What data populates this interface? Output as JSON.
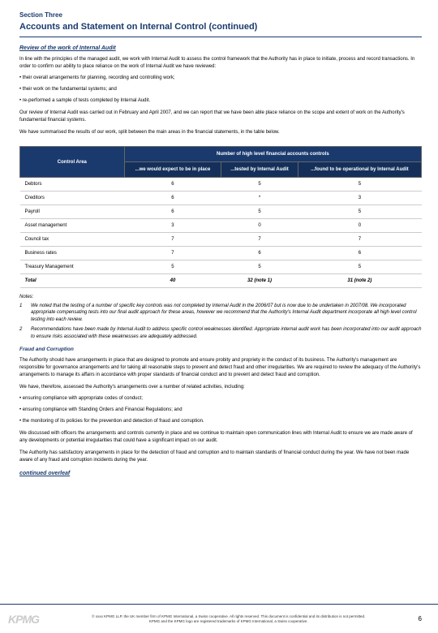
{
  "colors": {
    "navy": "#1a3a6e",
    "navy_dark": "#14305a"
  },
  "section_label": "Section Three",
  "main_title": "Accounts and Statement on Internal Control (continued)",
  "review_heading": "Review of the work of Internal Audit",
  "para1": "In line with the principles of the managed audit, we work with Internal Audit to assess the control framework that the Authority has in place to initiate, process and record transactions. In order to confirm our ability to place reliance on the work of Internal Audit we have reviewed:",
  "b1": "• their overall arrangements for planning, recording and controlling work;",
  "b2": "• their work on the fundamental systems; and",
  "b3": "• re-performed a sample of tests completed by Internal Audit.",
  "para2": "Our review of Internal Audit was carried out in February and April 2007, and we can report that we have been able place reliance on the scope and extent of work on the Authority's fundamental financial systems.",
  "para3": "We have summarised the results of our work, split between the main areas in the financial statements, in the table below.",
  "table": {
    "corner": "Control Area",
    "group_header": "Number of high level financial accounts controls",
    "col1": "...we would expect to be in place",
    "col2": "...tested by Internal Audit",
    "col3": "...found to be operational by Internal Audit",
    "rows": [
      {
        "label": "Debtors",
        "c1": "6",
        "c2": "5",
        "c3": "5"
      },
      {
        "label": "Creditors",
        "c1": "6",
        "c2": "*",
        "c3": "3"
      },
      {
        "label": "Payroll",
        "c1": "6",
        "c2": "5",
        "c3": "5"
      },
      {
        "label": "Asset management",
        "c1": "3",
        "c2": "0",
        "c3": "0"
      },
      {
        "label": "Council tax",
        "c1": "7",
        "c2": "7",
        "c3": "7"
      },
      {
        "label": "Business rates",
        "c1": "7",
        "c2": "6",
        "c3": "6"
      },
      {
        "label": "Treasury Management",
        "c1": "5",
        "c2": "5",
        "c3": "5"
      }
    ],
    "total": {
      "label": "Total",
      "c1": "40",
      "c2": "32 (note 1)",
      "c3": "31 (note 2)"
    }
  },
  "notes_label": "Notes:",
  "note1": "We noted that the testing of a number of specific key controls was not completed by Internal Audit in the 2006/07 but is now due to be undertaken in 2007/08. We incorporated appropriate compensating tests into our final audit approach for these areas, however we recommend that the Authority's Internal Audit department incorporate all high level control testing into each review.",
  "note2": "Recommendations have been made by Internal Audit to address specific control weaknesses identified. Appropriate internal audit work has been incorporated into our audit approach to ensure risks associated with these weaknesses are adequately addressed.",
  "fc_title": "Fraud and Corruption",
  "fc_p1": "The Authority should have arrangements in place that are designed to promote and ensure probity and propriety in the conduct of its business. The Authority's management are responsible for governance arrangements and for taking all reasonable steps to prevent and detect fraud and other irregularities. We are required to review the adequacy of the Authority's arrangements to manage its affairs in accordance with proper standards of financial conduct and to prevent and detect fraud and corruption.",
  "fc_p2": "We have, therefore, assessed the Authority's arrangements over a number of related activities, including:",
  "fc_b1": "• ensuring compliance with appropriate codes of conduct;",
  "fc_b2": "• ensuring compliance with Standing Orders and Financial Regulations; and",
  "fc_b3": "• the monitoring of its policies for the prevention and detection of fraud and corruption.",
  "fc_p3": "We discussed with officers the arrangements and controls currently in place and we continue to maintain open communication lines with Internal Audit to ensure we are made aware of any developments or potential irregularities that could have a significant impact on our audit.",
  "fc_p4": "The Authority has satisfactory arrangements in place for the detection of fraud and corruption and to maintain standards of financial conduct during the year. We have not been made aware of any fraud and corruption incidents during the year.",
  "continued": "continued overleaf",
  "footer": {
    "logo": "KPMG",
    "text1": "© xxxx KPMG LLP, the UK member firm of KPMG International, a Swiss cooperative. All rights reserved. This document is confidential and its distribution is not permitted.",
    "text2": "KPMG and the KPMG logo are registered trademarks of KPMG International, a Swiss cooperative.",
    "page": "6"
  }
}
